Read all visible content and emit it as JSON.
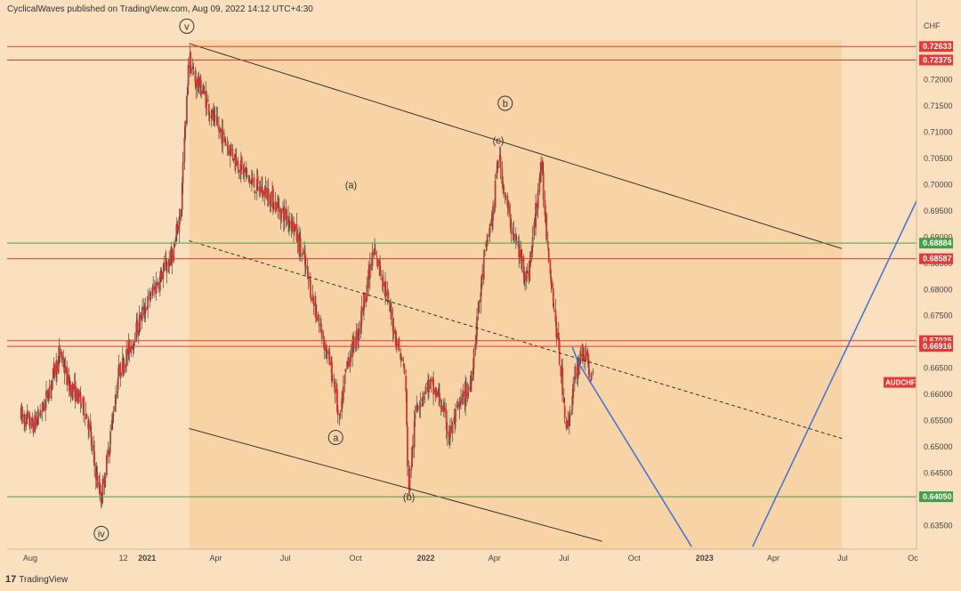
{
  "header": {
    "publisher_text": "CyclicalWaves published on TradingView.com, Aug 09, 2022 14:12 UTC+4:30"
  },
  "footer": {
    "logo_glyph": "17",
    "brand": "TradingView"
  },
  "colors": {
    "background": "#fbe0bf",
    "channel_fill": "#f8d3a6",
    "candle": "#e0312b",
    "hline_red": "#e53935",
    "hline_green": "#43a047",
    "projection": "#3f6fd6",
    "trendline": "#222222"
  },
  "chart_data": {
    "type": "candlestick",
    "symbol": "AUDCHF",
    "currency_label": "CHF",
    "y_ticks": [
      "0.72000",
      "0.71500",
      "0.71000",
      "0.70500",
      "0.70000",
      "0.69500",
      "0.69000",
      "0.68500",
      "0.68000",
      "0.67500",
      "0.67000",
      "0.66500",
      "0.66000",
      "0.65500",
      "0.65000",
      "0.64500",
      "0.64000",
      "0.63500"
    ],
    "ylim": [
      0.6305,
      0.7318
    ],
    "x_ticks": [
      {
        "label": "Aug",
        "date": "2020-08-01",
        "bold": false
      },
      {
        "label": "12",
        "date": "2020-12-01",
        "bold": false
      },
      {
        "label": "2021",
        "date": "2021-01-01",
        "bold": true
      },
      {
        "label": "Apr",
        "date": "2021-04-01",
        "bold": false
      },
      {
        "label": "Jul",
        "date": "2021-07-01",
        "bold": false
      },
      {
        "label": "Oct",
        "date": "2021-10-01",
        "bold": false
      },
      {
        "label": "2022",
        "date": "2022-01-01",
        "bold": true
      },
      {
        "label": "Apr",
        "date": "2022-04-01",
        "bold": false
      },
      {
        "label": "Jul",
        "date": "2022-07-01",
        "bold": false
      },
      {
        "label": "Oct",
        "date": "2022-10-01",
        "bold": false
      },
      {
        "label": "2023",
        "date": "2023-01-01",
        "bold": true
      },
      {
        "label": "Apr",
        "date": "2023-04-01",
        "bold": false
      },
      {
        "label": "Jul",
        "date": "2023-07-01",
        "bold": false
      },
      {
        "label": "Oc",
        "date": "2023-10-01",
        "bold": false
      }
    ],
    "horizontal_levels": [
      {
        "value": 0.72633,
        "label": "0.72633",
        "color": "#e53935"
      },
      {
        "value": 0.72375,
        "label": "0.72375",
        "color": "#e53935"
      },
      {
        "value": 0.68884,
        "label": "0.68884",
        "color": "#43a047"
      },
      {
        "value": 0.68587,
        "label": "0.68587",
        "color": "#e53935"
      },
      {
        "value": 0.67025,
        "label": "0.67025",
        "color": "#e53935"
      },
      {
        "value": 0.66916,
        "label": "0.66916",
        "color": "#e53935"
      },
      {
        "value": 0.6405,
        "label": "0.64050",
        "color": "#43a047"
      }
    ],
    "symbol_badge": {
      "label": "AUDCHF",
      "value": 0.6623,
      "color": "#e53935"
    },
    "price_path": [
      [
        "2020-07-20",
        0.656
      ],
      [
        "2020-08-05",
        0.654
      ],
      [
        "2020-08-20",
        0.658
      ],
      [
        "2020-09-01",
        0.664
      ],
      [
        "2020-09-10",
        0.668
      ],
      [
        "2020-09-20",
        0.662
      ],
      [
        "2020-10-01",
        0.66
      ],
      [
        "2020-10-15",
        0.656
      ],
      [
        "2020-10-25",
        0.646
      ],
      [
        "2020-11-02",
        0.64
      ],
      [
        "2020-11-12",
        0.65
      ],
      [
        "2020-11-25",
        0.664
      ],
      [
        "2020-12-10",
        0.669
      ],
      [
        "2020-12-25",
        0.675
      ],
      [
        "2021-01-10",
        0.68
      ],
      [
        "2021-01-25",
        0.684
      ],
      [
        "2021-02-05",
        0.687
      ],
      [
        "2021-02-15",
        0.696
      ],
      [
        "2021-02-20",
        0.71
      ],
      [
        "2021-02-25",
        0.724
      ],
      [
        "2021-03-05",
        0.72
      ],
      [
        "2021-03-15",
        0.718
      ],
      [
        "2021-03-30",
        0.712
      ],
      [
        "2021-04-15",
        0.708
      ],
      [
        "2021-05-01",
        0.704
      ],
      [
        "2021-05-20",
        0.7
      ],
      [
        "2021-06-10",
        0.698
      ],
      [
        "2021-06-25",
        0.695
      ],
      [
        "2021-07-10",
        0.693
      ],
      [
        "2021-07-25",
        0.686
      ],
      [
        "2021-08-10",
        0.676
      ],
      [
        "2021-08-25",
        0.668
      ],
      [
        "2021-09-05",
        0.661
      ],
      [
        "2021-09-10",
        0.654
      ],
      [
        "2021-09-20",
        0.666
      ],
      [
        "2021-10-05",
        0.672
      ],
      [
        "2021-10-15",
        0.68
      ],
      [
        "2021-10-25",
        0.687
      ],
      [
        "2021-11-05",
        0.683
      ],
      [
        "2021-11-15",
        0.676
      ],
      [
        "2021-11-25",
        0.67
      ],
      [
        "2021-12-05",
        0.664
      ],
      [
        "2021-12-10",
        0.642
      ],
      [
        "2021-12-20",
        0.658
      ],
      [
        "2022-01-05",
        0.662
      ],
      [
        "2022-01-20",
        0.659
      ],
      [
        "2022-02-01",
        0.652
      ],
      [
        "2022-02-15",
        0.658
      ],
      [
        "2022-03-01",
        0.662
      ],
      [
        "2022-03-10",
        0.675
      ],
      [
        "2022-03-20",
        0.687
      ],
      [
        "2022-04-01",
        0.696
      ],
      [
        "2022-04-06",
        0.706
      ],
      [
        "2022-04-20",
        0.694
      ],
      [
        "2022-05-01",
        0.688
      ],
      [
        "2022-05-15",
        0.682
      ],
      [
        "2022-05-25",
        0.694
      ],
      [
        "2022-06-01",
        0.704
      ],
      [
        "2022-06-10",
        0.689
      ],
      [
        "2022-06-20",
        0.674
      ],
      [
        "2022-06-30",
        0.661
      ],
      [
        "2022-07-05",
        0.653
      ],
      [
        "2022-07-15",
        0.662
      ],
      [
        "2022-07-25",
        0.669
      ],
      [
        "2022-08-05",
        0.664
      ],
      [
        "2022-08-09",
        0.6623
      ]
    ],
    "channel": {
      "upper": [
        [
          "2021-02-25",
          0.7269
        ],
        [
          "2023-06-30",
          0.6878
        ]
      ],
      "lower": [
        [
          "2021-02-25",
          0.6535
        ],
        [
          "2022-08-20",
          0.632
        ]
      ],
      "mid": [
        [
          "2021-02-25",
          0.6893
        ],
        [
          "2023-06-30",
          0.6516
        ]
      ],
      "right_edge_date": "2023-06-30"
    },
    "projection": [
      [
        "2022-07-12",
        0.669
      ],
      [
        "2022-07-20",
        0.666
      ],
      [
        "2022-12-15",
        0.631
      ]
    ],
    "projection_up": [
      [
        "2023-03-05",
        0.631
      ],
      [
        "2023-11-05",
        0.7062
      ]
    ],
    "wave_labels": [
      {
        "text": "v",
        "circled": true,
        "date": "2021-02-22",
        "value": 0.7302
      },
      {
        "text": "iv",
        "circled": true,
        "date": "2020-11-02",
        "value": 0.6335
      },
      {
        "text": "b",
        "circled": true,
        "date": "2022-04-15",
        "value": 0.7155
      },
      {
        "text": "(a)",
        "circled": false,
        "date": "2021-09-25",
        "value": 0.7
      },
      {
        "text": "(c)",
        "circled": false,
        "date": "2022-04-06",
        "value": 0.7085
      },
      {
        "text": "a",
        "circled": true,
        "date": "2021-09-05",
        "value": 0.6518
      },
      {
        "text": "(b)",
        "circled": false,
        "date": "2021-12-10",
        "value": 0.6405
      }
    ]
  }
}
